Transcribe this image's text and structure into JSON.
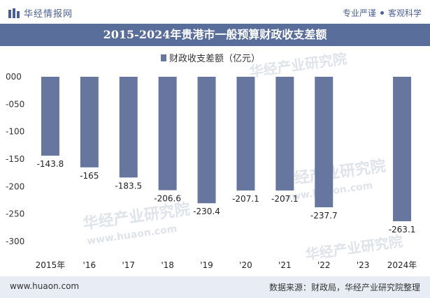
{
  "header": {
    "brand": "华经情报网",
    "tagline_left": "专业严谨",
    "tagline_right": "客观科学"
  },
  "watermark": {
    "text": "华经产业研究院",
    "url": "www.huaon.com"
  },
  "chart_data": {
    "type": "bar",
    "title": "2015-2024年贵港市一般预算财政收支差额",
    "categories": [
      "2015年",
      "'16",
      "'17",
      "'18",
      "'19",
      "'20",
      "'21",
      "'22",
      "'23",
      "2024年"
    ],
    "series": [
      {
        "name": "财政收支差额（亿元）",
        "values": [
          -143.8,
          -165,
          -183.5,
          -206.6,
          -230.4,
          -207.1,
          -207.1,
          -237.7,
          null,
          -263.1
        ]
      }
    ],
    "data_labels": [
      "-143.8",
      "-165",
      "-183.5",
      "-206.6",
      "-230.4",
      "-207.1",
      "-207.1",
      "-237.7",
      "",
      "-263.1"
    ],
    "y_ticks": [
      0,
      -50,
      -100,
      -150,
      -200,
      -250,
      -300
    ],
    "y_tick_labels": [
      "000",
      "-050",
      "-100",
      "-150",
      "-200",
      "-250",
      "-300"
    ],
    "ylim": [
      -300,
      0
    ],
    "legend_position": "top-center",
    "bar_color": "#66769e",
    "grid": false
  },
  "footer": {
    "website": "www.huaon.com",
    "source": "数据来源：财政局，华经产业研究院整理"
  }
}
